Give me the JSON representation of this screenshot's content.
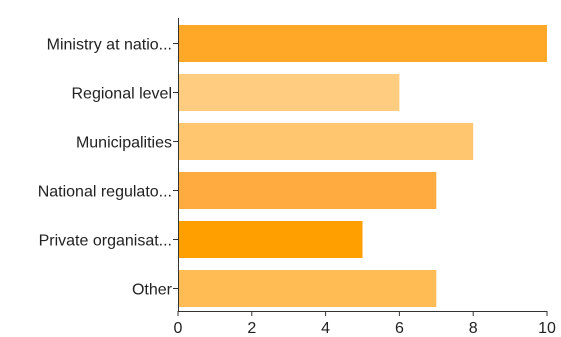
{
  "chart_data": {
    "type": "bar",
    "orientation": "horizontal",
    "categories": [
      "Ministry at natio...",
      "Regional level",
      "Municipalities",
      "National regulato...",
      "Private organisat...",
      "Other"
    ],
    "values": [
      10,
      6,
      8,
      7,
      5,
      7
    ],
    "colors": [
      "#ffa726",
      "#ffcc80",
      "#ffc56f",
      "#ffab40",
      "#ff9f00",
      "#ffbb54"
    ],
    "xlim": [
      0,
      10
    ],
    "xticks": [
      0,
      2,
      4,
      6,
      8,
      10
    ],
    "grid": false,
    "legend": "none"
  }
}
